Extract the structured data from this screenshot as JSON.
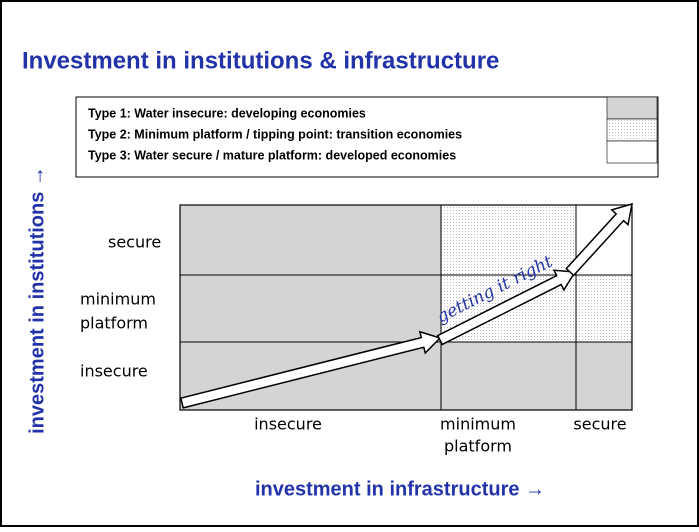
{
  "title": "Investment in institutions & infrastructure",
  "legend": [
    {
      "label": "Type 1: Water insecure: developing economies"
    },
    {
      "label": "Type 2: Minimum platform / tipping point: transition economies"
    },
    {
      "label": "Type 3: Water secure / mature platform: developed economies"
    }
  ],
  "y_levels": [
    [
      "secure"
    ],
    [
      "minimum",
      "platform"
    ],
    [
      "insecure"
    ]
  ],
  "x_levels": [
    [
      "insecure"
    ],
    [
      "minimum",
      "platform"
    ],
    [
      "secure"
    ]
  ],
  "y_axis_title": "investment in institutions →",
  "x_axis_title": "investment in infrastructure →",
  "annotation": "getting it right"
}
